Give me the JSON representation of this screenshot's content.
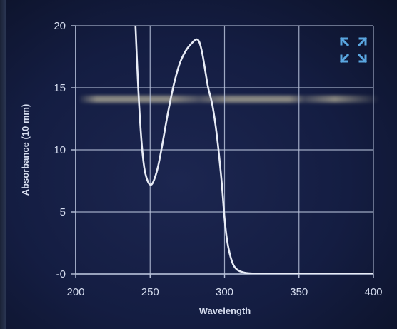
{
  "chart_data": {
    "type": "line",
    "xlabel": "Wavelength",
    "ylabel": "Absorbance (10 mm)",
    "xlim": [
      200,
      400
    ],
    "ylim": [
      0,
      20
    ],
    "x_ticks": [
      "200",
      "250",
      "300",
      "350",
      "400"
    ],
    "y_ticks": [
      "-0",
      "5",
      "10",
      "15",
      "20"
    ],
    "grid": true,
    "series": [
      {
        "color": "#e8ecf6",
        "x": [
          240,
          242,
          244,
          246,
          248,
          250,
          252,
          255,
          258,
          262,
          266,
          270,
          274,
          278,
          281,
          283,
          285,
          287,
          289,
          292,
          295,
          298,
          300,
          302,
          305,
          308,
          312,
          316,
          320,
          330,
          350,
          370,
          400
        ],
        "y": [
          20.5,
          15.0,
          11.0,
          8.6,
          7.6,
          7.2,
          7.4,
          8.5,
          10.3,
          13.0,
          15.3,
          17.0,
          18.0,
          18.6,
          18.9,
          18.7,
          17.8,
          16.4,
          15.0,
          13.5,
          11.0,
          7.5,
          4.5,
          2.5,
          1.0,
          0.4,
          0.15,
          0.06,
          0.03,
          0.01,
          0.0,
          0.0,
          0.0
        ]
      }
    ]
  },
  "controls": {
    "expand_icon": "expand-arrows-icon",
    "accent_color": "#5aa6e0"
  },
  "colors": {
    "background": "#141d42",
    "grid": "#b8c2da",
    "line": "#e8ecf6"
  }
}
